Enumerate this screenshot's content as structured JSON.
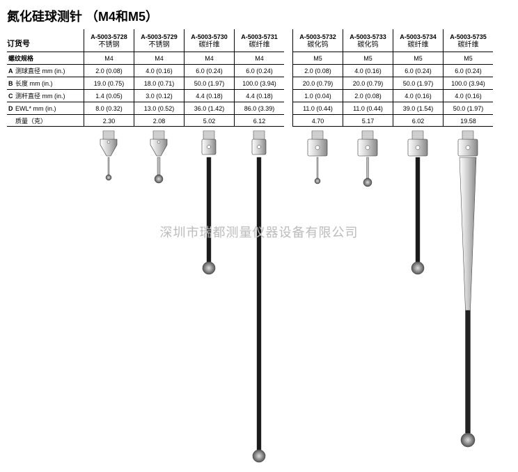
{
  "title": "氮化硅球测针 （M4和M5）",
  "order_label": "订货号",
  "row_labels": {
    "thread": "螺纹规格",
    "A": "测球直径 mm (in.)",
    "B": "长度 mm (in.)",
    "C": "测杆直径 mm (in.)",
    "D": "EWL* mm (in.)",
    "mass": "质量（克）"
  },
  "groups": [
    {
      "cols": [
        {
          "pn": "A-5003-5728",
          "mat": "不锈钢",
          "thread": "M4",
          "A": "2.0 (0.08)",
          "B": "19.0 (0.75)",
          "C": "1.4 (0.05)",
          "D": "8.0 (0.32)",
          "mass": "2.30",
          "stylus": {
            "type": "cone",
            "stem_len": 25,
            "stem_w": 2,
            "ball": 4
          }
        },
        {
          "pn": "A-5003-5729",
          "mat": "不锈钢",
          "thread": "M4",
          "A": "4.0 (0.16)",
          "B": "18.0 (0.71)",
          "C": "3.0 (0.12)",
          "D": "13.0 (0.52)",
          "mass": "2.08",
          "stylus": {
            "type": "cone",
            "stem_len": 25,
            "stem_w": 4,
            "ball": 6
          }
        },
        {
          "pn": "A-5003-5730",
          "mat": "碳纤维",
          "thread": "M4",
          "A": "6.0 (0.24)",
          "B": "50.0 (1.97)",
          "C": "4.4 (0.18)",
          "D": "36.0 (1.42)",
          "mass": "5.02",
          "stylus": {
            "type": "cyl",
            "stem_len": 150,
            "stem_w": 6,
            "ball": 9,
            "dark": true
          }
        },
        {
          "pn": "A-5003-5731",
          "mat": "碳纤维",
          "thread": "M4",
          "A": "6.0 (0.24)",
          "B": "100.0 (3.94)",
          "C": "4.4 (0.18)",
          "D": "86.0 (3.39)",
          "mass": "6.12",
          "stylus": {
            "type": "cyl",
            "stem_len": 420,
            "stem_w": 6,
            "ball": 9,
            "dark": true
          }
        }
      ]
    },
    {
      "cols": [
        {
          "pn": "A-5003-5732",
          "mat": "碳化钨",
          "thread": "M5",
          "A": "2.0 (0.08)",
          "B": "20.0 (0.79)",
          "C": "1.0 (0.04)",
          "D": "11.0 (0.44)",
          "mass": "4.70",
          "stylus": {
            "type": "block",
            "stem_len": 30,
            "stem_w": 2,
            "ball": 4
          }
        },
        {
          "pn": "A-5003-5733",
          "mat": "碳化钨",
          "thread": "M5",
          "A": "4.0 (0.16)",
          "B": "20.0 (0.79)",
          "C": "2.0 (0.08)",
          "D": "11.0 (0.44)",
          "mass": "5.17",
          "stylus": {
            "type": "block",
            "stem_len": 30,
            "stem_w": 3,
            "ball": 6
          }
        },
        {
          "pn": "A-5003-5734",
          "mat": "碳纤维",
          "thread": "M5",
          "A": "6.0 (0.24)",
          "B": "50.0 (1.97)",
          "C": "4.0 (0.16)",
          "D": "39.0 (1.54)",
          "mass": "6.02",
          "stylus": {
            "type": "cyl",
            "stem_len": 150,
            "stem_w": 6,
            "ball": 9,
            "dark": true,
            "holder": "block"
          }
        },
        {
          "pn": "A-5003-5735",
          "mat": "碳纤维",
          "thread": "M5",
          "A": "6.0 (0.24)",
          "B": "100.0 (3.94)",
          "C": "4.0 (0.16)",
          "D": "50.0 (1.97)",
          "mass": "19.58",
          "stylus": {
            "type": "taper",
            "stem_len": 220,
            "stem_w": 7,
            "ball": 10,
            "dark": true,
            "holder": "block"
          }
        }
      ]
    }
  ],
  "watermark": "深圳市瑞都测量仪器设备有限公司"
}
